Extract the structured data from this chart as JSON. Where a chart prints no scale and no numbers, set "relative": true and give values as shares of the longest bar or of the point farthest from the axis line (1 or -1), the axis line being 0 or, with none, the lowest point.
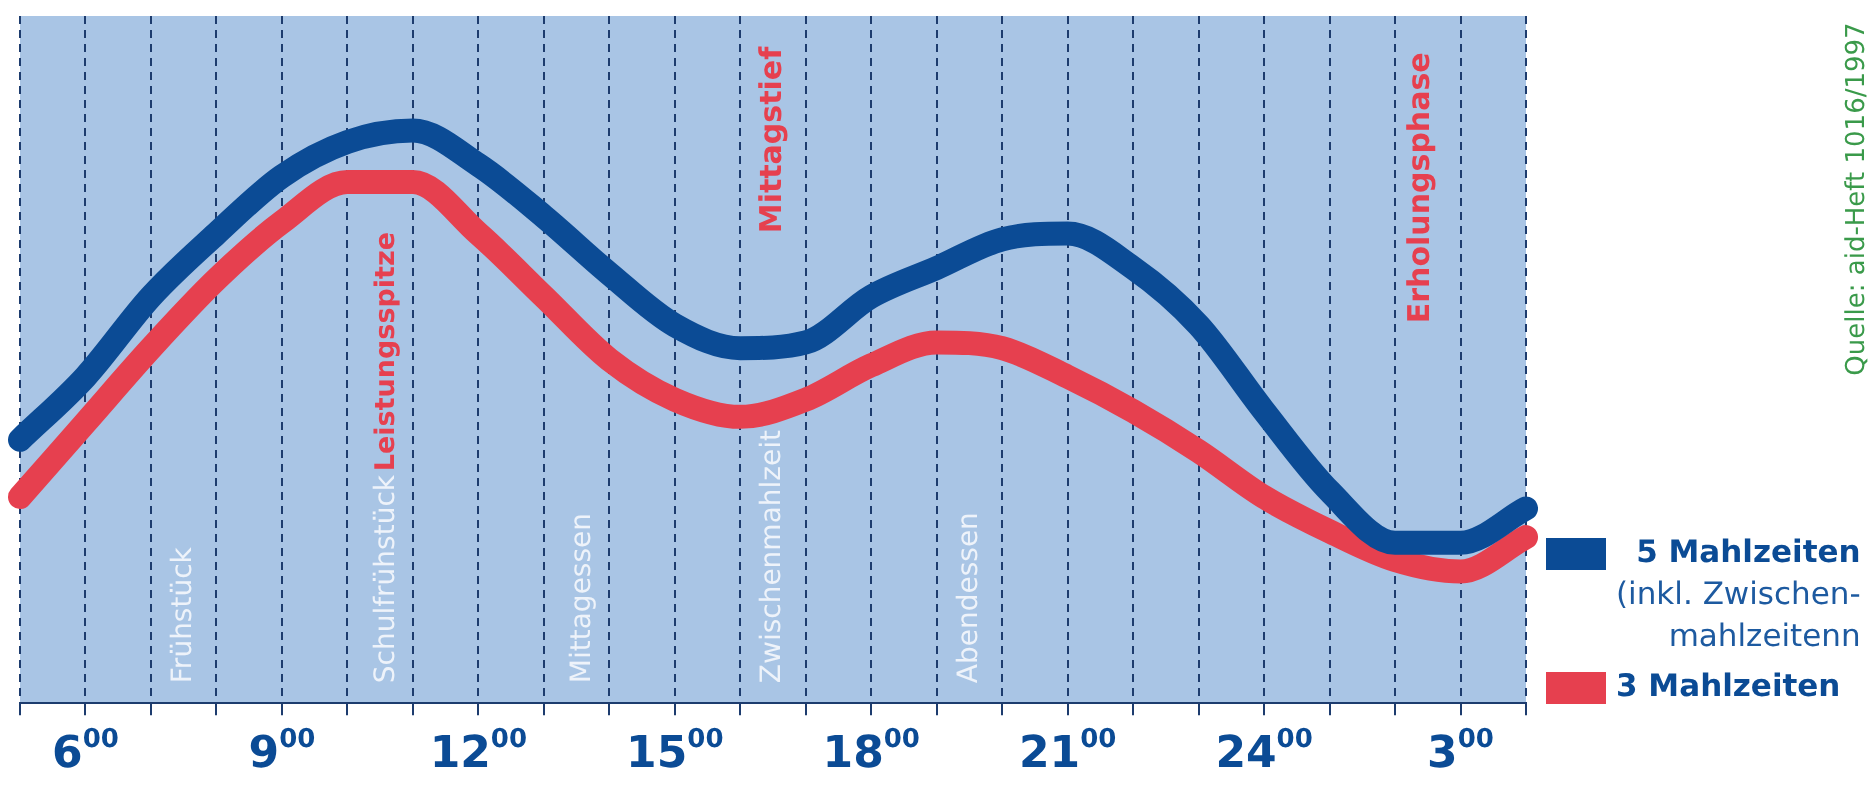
{
  "chart_data": {
    "type": "line",
    "relative": true,
    "categories": [
      null,
      "6$^{00}$",
      null,
      null,
      "9$^{00}$",
      null,
      null,
      "12$^{00}$",
      null,
      null,
      "15$^{00}$",
      null,
      null,
      "18$^{00}$",
      null,
      null,
      "21$^{00}$",
      null,
      null,
      "24$^{00}$",
      null,
      null,
      "3$^{00}$",
      null
    ],
    "grid": "x",
    "legend": "right",
    "marker": "none",
    "line_style": "solid",
    "series": [
      {
        "name": "5 Mahlzeiten\n(inkl. Zwischen-\nmahlzeitenn",
        "color": "#0b4b95",
        "values": [
          0.46,
          0.57,
          0.71,
          0.82,
          0.92,
          0.98,
          1,
          0.94,
          0.85,
          0.75,
          0.66,
          0.62,
          0.63,
          0.71,
          0.76,
          0.81,
          0.82,
          0.76,
          0.66,
          0.51,
          0.37,
          0.28,
          0.28,
          0.34
        ]
      },
      {
        "name": "3 Mahlzeiten",
        "color": "#e6404f",
        "values": [
          0.36,
          0.49,
          0.62,
          0.74,
          0.84,
          0.91,
          0.91,
          0.82,
          0.71,
          0.6,
          0.53,
          0.5,
          0.53,
          0.59,
          0.63,
          0.62,
          0.57,
          0.51,
          0.44,
          0.36,
          0.3,
          0.25,
          0.23,
          0.29
        ]
      }
    ],
    "annotations": [
      "Frühstück",
      "Schulfrühstück",
      "Mittagessen",
      "Zwischenmahlzeit",
      "Abendessen",
      "Leistungsspitze",
      "Mittagstief",
      "Erholungsphase",
      "Quelle: aid-Heft 1016/1997"
    ]
  }
}
